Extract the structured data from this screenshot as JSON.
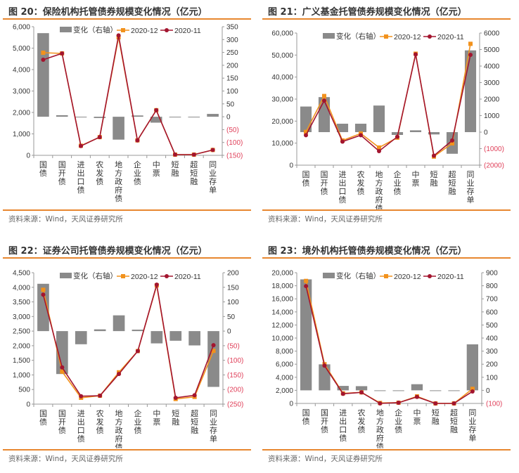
{
  "source": "资料来源：Wind，天风证券研究所",
  "colors": {
    "bar": "#8a8a8a",
    "dec": "#f2921d",
    "nov": "#a3152f",
    "neg_tick": "#e0405a",
    "rule": "#e8872f"
  },
  "chart_data": [
    {
      "title": "图 20：保险机构托管债券规模变化情况（亿元）",
      "type": "bar+line",
      "categories": [
        "国债",
        "国开债",
        "进出口债",
        "农发债",
        "地方政府债",
        "企业债",
        "中票",
        "短融",
        "超短融",
        "同业存单"
      ],
      "legend": [
        "变化（右轴）",
        "2020-12",
        "2020-11"
      ],
      "left_axis": {
        "range": [
          0,
          6000
        ],
        "ticks": [
          "0",
          "1,000",
          "2,000",
          "3,000",
          "4,000",
          "5,000",
          "6,000"
        ]
      },
      "right_axis": {
        "range": [
          -150,
          350
        ],
        "ticks": [
          "(150)",
          "(100)",
          "(50)",
          "0",
          "50",
          "100",
          "150",
          "200",
          "250",
          "300",
          "350"
        ]
      },
      "series": [
        {
          "name": "变化（右轴）",
          "axis": "right",
          "type": "bar",
          "values": [
            325,
            6,
            -2,
            -5,
            -89,
            5,
            -23,
            0,
            0,
            11
          ]
        },
        {
          "name": "2020-12",
          "axis": "left",
          "type": "line",
          "values": [
            4787,
            4755,
            447,
            850,
            5507,
            698,
            2105,
            33,
            33,
            251
          ]
        },
        {
          "name": "2020-11",
          "axis": "left",
          "type": "line",
          "values": [
            4460,
            4755,
            436,
            850,
            5594,
            698,
            2105,
            33,
            33,
            251
          ]
        }
      ]
    },
    {
      "title": "图 21：广义基金托管债券规模变化情况（亿元）",
      "type": "bar+line",
      "categories": [
        "国债",
        "国开债",
        "进出口债",
        "农发债",
        "地方政府债",
        "企业债",
        "中票",
        "短融",
        "超短融",
        "同业存单"
      ],
      "legend": [
        "变化（右轴）",
        "2020-12",
        "2020-11"
      ],
      "left_axis": {
        "range": [
          0,
          60000
        ],
        "ticks": [
          "0",
          "10,000",
          "20,000",
          "30,000",
          "40,000",
          "50,000",
          "60,000"
        ]
      },
      "right_axis": {
        "range": [
          -2000,
          6000
        ],
        "ticks": [
          "(2000)",
          "(1000)",
          "0",
          "1000",
          "2000",
          "3000",
          "4000",
          "5000",
          "6000"
        ]
      },
      "series": [
        {
          "name": "变化（右轴）",
          "axis": "right",
          "type": "bar",
          "values": [
            1550,
            2120,
            510,
            510,
            1610,
            -170,
            110,
            -140,
            -1310,
            4950
          ]
        },
        {
          "name": "2020-12",
          "axis": "left",
          "type": "line",
          "values": [
            15100,
            31400,
            11200,
            14400,
            8000,
            12500,
            50600,
            3900,
            9900,
            55100
          ]
        },
        {
          "name": "2020-11",
          "axis": "left",
          "type": "line",
          "values": [
            13600,
            29300,
            10700,
            13600,
            6400,
            12900,
            50300,
            4300,
            11200,
            50100
          ]
        }
      ]
    },
    {
      "title": "图 22：证券公司托管债券规模变化情况（亿元）",
      "type": "bar+line",
      "categories": [
        "国债",
        "国开债",
        "进出口债",
        "农发债",
        "地方政府债",
        "企业债",
        "中票",
        "短融",
        "超短融",
        "同业存单"
      ],
      "legend": [
        "变化（右轴）",
        "2020-12",
        "2020-11"
      ],
      "left_axis": {
        "range": [
          0,
          4500
        ],
        "ticks": [
          "0",
          "500",
          "1,000",
          "1,500",
          "2,000",
          "2,500",
          "3,000",
          "3,500",
          "4,000",
          "4,500"
        ]
      },
      "right_axis": {
        "range": [
          -250,
          200
        ],
        "ticks": [
          "(250)",
          "(200)",
          "(150)",
          "(100)",
          "(50)",
          "0",
          "50",
          "100",
          "150",
          "200"
        ]
      },
      "series": [
        {
          "name": "变化（右轴）",
          "axis": "right",
          "type": "bar",
          "values": [
            162,
            -147,
            -45,
            6,
            54,
            5,
            -42,
            -33,
            -49,
            -191
          ]
        },
        {
          "name": "2020-12",
          "axis": "left",
          "type": "line",
          "values": [
            3915,
            1113,
            216,
            288,
            1089,
            1817,
            4067,
            176,
            248,
            1825
          ]
        },
        {
          "name": "2020-11",
          "axis": "left",
          "type": "line",
          "values": [
            3747,
            1257,
            272,
            288,
            1033,
            1817,
            4091,
            216,
            304,
            2018
          ]
        }
      ]
    },
    {
      "title": "图 23：境外机构托管债券规模变化情况（亿元）",
      "type": "bar+line",
      "categories": [
        "国债",
        "国开债",
        "进出口债",
        "农发债",
        "地方政府债",
        "企业债",
        "中票",
        "短融",
        "超短融",
        "同业存单"
      ],
      "legend": [
        "变化（右轴）",
        "2020-12",
        "2020-11"
      ],
      "left_axis": {
        "range": [
          0,
          20000
        ],
        "ticks": [
          "0",
          "2,000",
          "4,000",
          "6,000",
          "8,000",
          "10,000",
          "12,000",
          "14,000",
          "16,000",
          "18,000",
          "20,000"
        ]
      },
      "right_axis": {
        "range": [
          -100,
          900
        ],
        "ticks": [
          "(100)",
          "0",
          "100",
          "200",
          "300",
          "400",
          "500",
          "600",
          "700",
          "800",
          "900"
        ]
      },
      "series": [
        {
          "name": "变化（右轴）",
          "axis": "right",
          "type": "bar",
          "values": [
            849,
            199,
            34,
            32,
            -1,
            0,
            47,
            -2,
            -3,
            352
          ]
        },
        {
          "name": "2020-12",
          "axis": "left",
          "type": "line",
          "values": [
            18740,
            6000,
            1540,
            1690,
            70,
            110,
            1080,
            0,
            0,
            2230
          ]
        },
        {
          "name": "2020-11",
          "axis": "left",
          "type": "line",
          "values": [
            17950,
            5780,
            1470,
            1690,
            0,
            110,
            1000,
            0,
            0,
            1830
          ]
        }
      ]
    }
  ]
}
